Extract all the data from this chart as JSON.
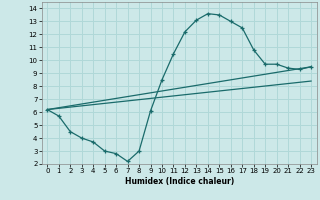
{
  "xlabel": "Humidex (Indice chaleur)",
  "xlim": [
    -0.5,
    23.5
  ],
  "ylim": [
    2,
    14.5
  ],
  "xticks": [
    0,
    1,
    2,
    3,
    4,
    5,
    6,
    7,
    8,
    9,
    10,
    11,
    12,
    13,
    14,
    15,
    16,
    17,
    18,
    19,
    20,
    21,
    22,
    23
  ],
  "yticks": [
    2,
    3,
    4,
    5,
    6,
    7,
    8,
    9,
    10,
    11,
    12,
    13,
    14
  ],
  "bg_color": "#cce8e8",
  "grid_color": "#b0d8d8",
  "line_color": "#1a6b6b",
  "curve1_x": [
    0,
    1,
    2,
    3,
    4,
    5,
    6,
    7,
    8,
    9,
    10,
    11,
    12,
    13,
    14,
    15,
    16,
    17,
    18,
    19,
    20,
    21,
    22,
    23
  ],
  "curve1_y": [
    6.2,
    5.7,
    4.5,
    4.0,
    3.7,
    3.0,
    2.8,
    2.2,
    3.0,
    6.1,
    8.5,
    10.5,
    12.2,
    13.1,
    13.6,
    13.5,
    13.0,
    12.5,
    10.8,
    9.7,
    9.7,
    9.4,
    9.3,
    9.5
  ],
  "line1_x": [
    0,
    23
  ],
  "line1_y": [
    6.2,
    9.5
  ],
  "line2_x": [
    0,
    23
  ],
  "line2_y": [
    6.2,
    8.4
  ]
}
